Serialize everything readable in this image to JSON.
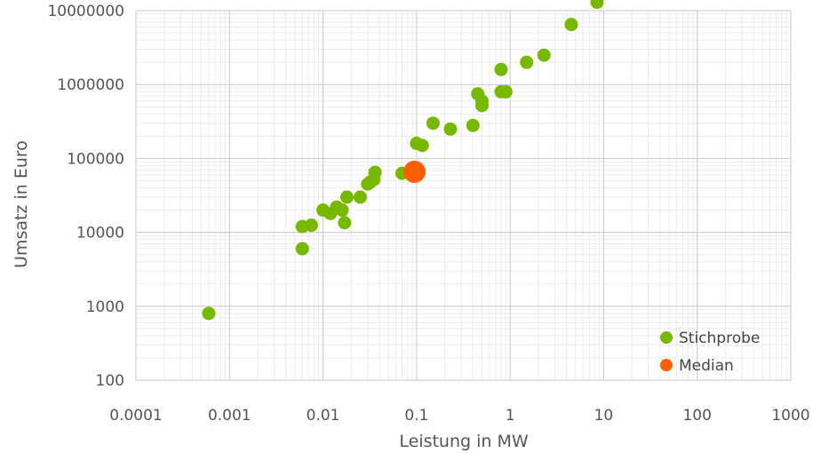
{
  "chart_data": {
    "type": "scatter",
    "xscale": "log",
    "yscale": "log",
    "xlim": [
      0.0001,
      1000
    ],
    "ylim": [
      100,
      10000000
    ],
    "xlabel": "Leistung in MW",
    "ylabel": "Umsatz in Euro",
    "x_tick_labels": [
      "0.0001",
      "0.001",
      "0.01",
      "0.1",
      "1",
      "10",
      "100",
      "1000"
    ],
    "y_tick_labels": [
      "100",
      "1000",
      "10000",
      "100000",
      "1000000",
      "10000000"
    ],
    "grid": true,
    "legend_position": "bottom-right",
    "series": [
      {
        "name": "Stichprobe",
        "color": "#76B900",
        "points": [
          {
            "x": 0.0006,
            "y": 800
          },
          {
            "x": 0.006,
            "y": 6000
          },
          {
            "x": 0.006,
            "y": 12000
          },
          {
            "x": 0.0075,
            "y": 12500
          },
          {
            "x": 0.01,
            "y": 20000
          },
          {
            "x": 0.012,
            "y": 18000
          },
          {
            "x": 0.014,
            "y": 22000
          },
          {
            "x": 0.016,
            "y": 20000
          },
          {
            "x": 0.017,
            "y": 13500
          },
          {
            "x": 0.018,
            "y": 30000
          },
          {
            "x": 0.025,
            "y": 30000
          },
          {
            "x": 0.03,
            "y": 45000
          },
          {
            "x": 0.032,
            "y": 48000
          },
          {
            "x": 0.035,
            "y": 52000
          },
          {
            "x": 0.036,
            "y": 65000
          },
          {
            "x": 0.07,
            "y": 63000
          },
          {
            "x": 0.1,
            "y": 160000
          },
          {
            "x": 0.115,
            "y": 150000
          },
          {
            "x": 0.15,
            "y": 300000
          },
          {
            "x": 0.23,
            "y": 250000
          },
          {
            "x": 0.4,
            "y": 280000
          },
          {
            "x": 0.45,
            "y": 750000
          },
          {
            "x": 0.5,
            "y": 600000
          },
          {
            "x": 0.5,
            "y": 520000
          },
          {
            "x": 0.8,
            "y": 1600000
          },
          {
            "x": 0.8,
            "y": 800000
          },
          {
            "x": 0.9,
            "y": 800000
          },
          {
            "x": 1.5,
            "y": 2000000
          },
          {
            "x": 2.3,
            "y": 2500000
          },
          {
            "x": 4.5,
            "y": 6500000
          },
          {
            "x": 8.5,
            "y": 13000000
          }
        ]
      },
      {
        "name": "Median",
        "color": "#FF5F00",
        "points": [
          {
            "x": 0.095,
            "y": 66000
          }
        ]
      }
    ]
  }
}
